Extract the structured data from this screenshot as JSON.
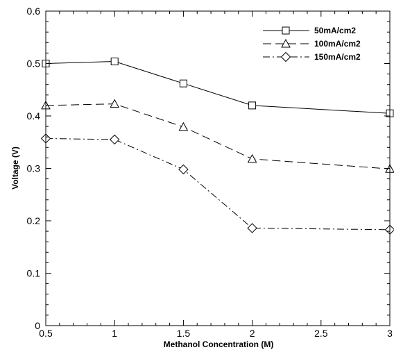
{
  "chart_data": {
    "type": "line",
    "xlabel": "Methanol Concentration (M)",
    "ylabel": "Voltage (V)",
    "xlim": [
      0.5,
      3
    ],
    "ylim": [
      0,
      0.6
    ],
    "xticks": [
      0.5,
      1,
      1.5,
      2,
      2.5,
      3
    ],
    "xtick_labels": [
      "0.5",
      "1",
      "1.5",
      "2",
      "2.5",
      "3"
    ],
    "yticks": [
      0,
      0.1,
      0.2,
      0.3,
      0.4,
      0.5,
      0.6
    ],
    "ytick_labels": [
      "0",
      "0.1",
      "0.2",
      "0.3",
      "0.4",
      "0.5",
      "0.6"
    ],
    "grid": false,
    "legend_position": "top-right",
    "x": [
      0.5,
      1,
      1.5,
      2,
      3
    ],
    "series": [
      {
        "name": "50mA/cm2",
        "values": [
          0.5,
          0.504,
          0.462,
          0.42,
          0.405
        ],
        "marker": "square",
        "line_style": "solid"
      },
      {
        "name": "100mA/cm2",
        "values": [
          0.42,
          0.423,
          0.379,
          0.318,
          0.299
        ],
        "marker": "triangle",
        "line_style": "dashed"
      },
      {
        "name": "150mA/cm2",
        "values": [
          0.357,
          0.355,
          0.298,
          0.186,
          0.183
        ],
        "marker": "diamond",
        "line_style": "dash-dot"
      }
    ],
    "colors": {
      "line": "#000000",
      "background": "#ffffff",
      "marker_fill": "#ffffff"
    }
  }
}
